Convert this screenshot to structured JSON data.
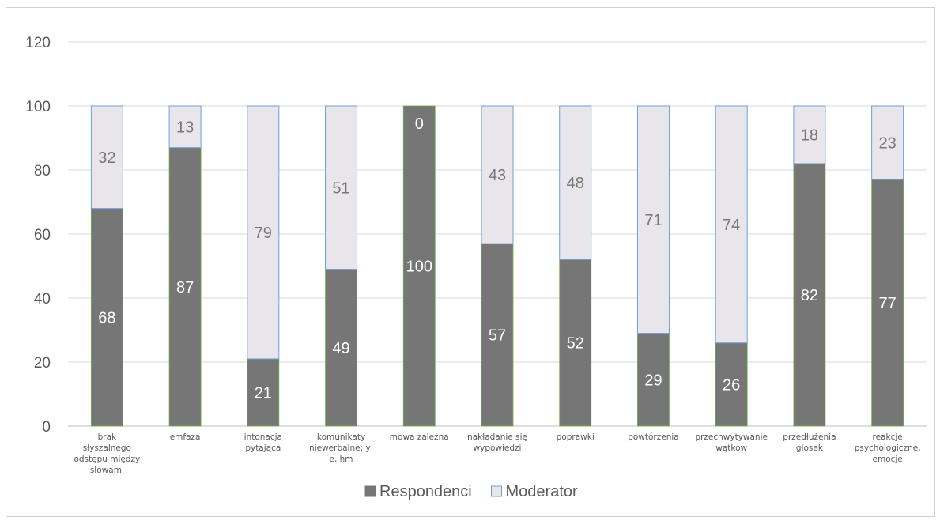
{
  "chart_data": {
    "type": "bar",
    "stacked": true,
    "title": "",
    "xlabel": "",
    "ylabel": "",
    "ylim": [
      0,
      120
    ],
    "yticks": [
      0,
      20,
      40,
      60,
      80,
      100,
      120
    ],
    "grid": true,
    "legend_position": "bottom",
    "categories": [
      "brak słyszalnego odstępu między słowami",
      "emfaza",
      "intonacja pytająca",
      "komunikaty niewerbalne: y, e, hm",
      "mowa zależna",
      "nakładanie się wypowiedzi",
      "poprawki",
      "powtórzenia",
      "przechwytywanie wątków",
      "przedłużenia głosek",
      "reakcje psychologiczne, emocje"
    ],
    "series": [
      {
        "name": "Respondenci",
        "color": "#767676",
        "label_color": "#ffffff",
        "values": [
          68,
          87,
          21,
          49,
          100,
          57,
          52,
          29,
          26,
          82,
          77
        ]
      },
      {
        "name": "Moderator",
        "color": "#e8e6ea",
        "border_color": "#6f9fd8",
        "label_color": "#767676",
        "values": [
          32,
          13,
          79,
          51,
          0,
          43,
          48,
          71,
          74,
          18,
          23
        ]
      }
    ]
  }
}
